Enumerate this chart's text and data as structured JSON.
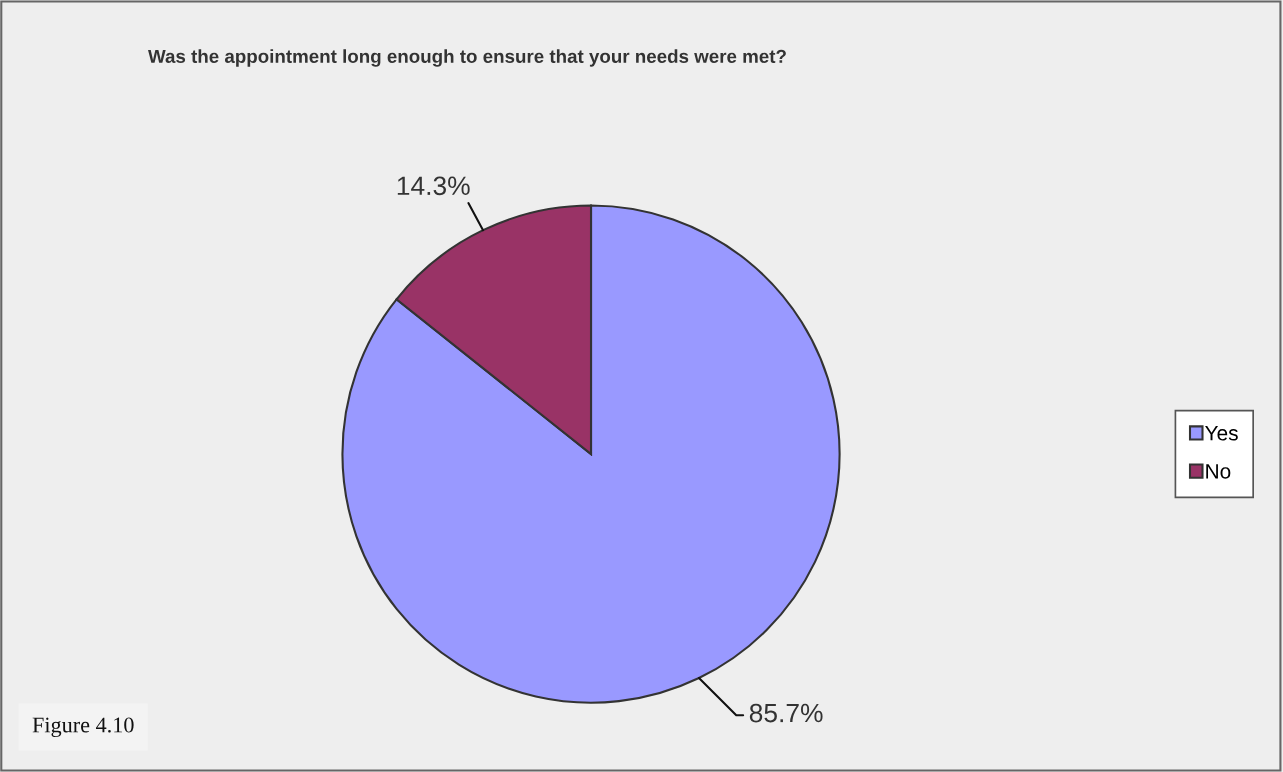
{
  "chart_data": {
    "type": "pie",
    "title": "Was the appointment long enough to ensure that your needs were met?",
    "categories": [
      "Yes",
      "No"
    ],
    "values": [
      85.7,
      14.3
    ],
    "colors": [
      "#9999ff",
      "#993366"
    ],
    "value_labels": [
      "85.7%",
      "14.3%"
    ],
    "legend": "right",
    "annotations": [
      "Figure 4.10"
    ]
  }
}
